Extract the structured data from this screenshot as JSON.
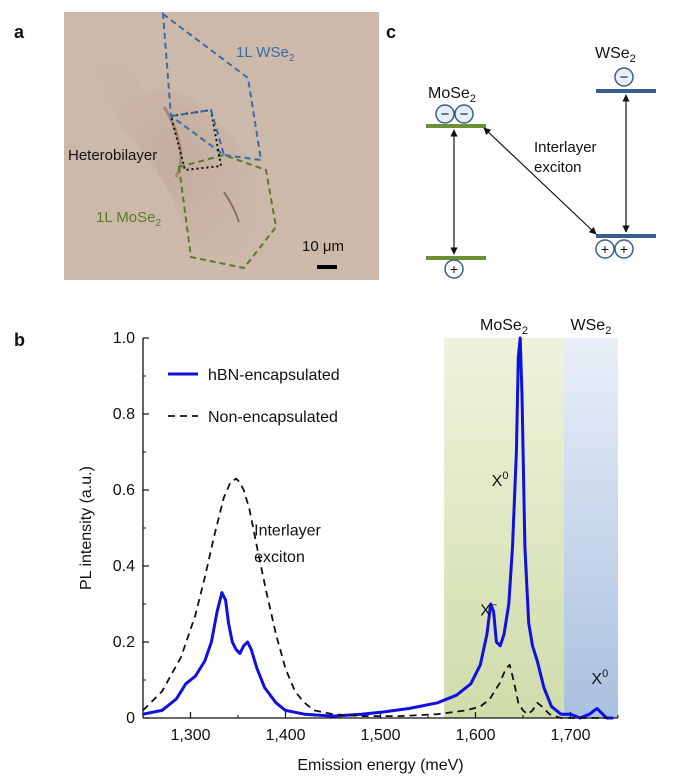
{
  "panels": {
    "a": {
      "label": "a",
      "wse2_label_main": "1L WSe",
      "wse2_label_sub": "2",
      "mose2_label_main": "1L MoSe",
      "mose2_label_sub": "2",
      "heterobilayer": "Heterobilayer",
      "scale_bar": "10 μm"
    },
    "b": {
      "label": "b"
    },
    "c": {
      "label": "c",
      "mose2_main": "MoSe",
      "mose2_sub": "2",
      "wse2_main": "WSe",
      "wse2_sub": "2",
      "interlayer_line1": "Interlayer",
      "interlayer_line2": "exciton",
      "electron": "−",
      "hole": "+"
    }
  },
  "colors": {
    "wse2": "#3a6aa8",
    "mose2": "#5a7a2a",
    "hbn_line": "#1010e0",
    "non_encap_line": "#111111",
    "band_mose2": "#6e8f34",
    "band_wse2": "#3a5e8c"
  },
  "chart_data": {
    "type": "line",
    "xlabel": "Emission energy (meV)",
    "ylabel": "PL intensity (a.u.)",
    "xlim": [
      1250,
      1750
    ],
    "ylim": [
      0,
      1.0
    ],
    "xticks": [
      1300,
      1400,
      1500,
      1600,
      1700
    ],
    "xtick_labels": [
      "1,300",
      "1,400",
      "1,500",
      "1,600",
      "1,700"
    ],
    "yticks": [
      0,
      0.2,
      0.4,
      0.6,
      0.8,
      1.0
    ],
    "ytick_labels": [
      "0",
      "0.2",
      "0.4",
      "0.6",
      "0.8",
      "1.0"
    ],
    "legend_position": "top-left",
    "shaded_regions": [
      {
        "label_main": "MoSe",
        "label_sub": "2",
        "x0": 1567,
        "x1": 1693,
        "color": "#d5e0b3"
      },
      {
        "label_main": "WSe",
        "label_sub": "2",
        "x0": 1693,
        "x1": 1750,
        "color": "#b8cbe4"
      }
    ],
    "annotations": [
      {
        "text_main": "X",
        "text_sup": "0",
        "x": 1617,
        "y": 0.61
      },
      {
        "text_main": "X",
        "text_sup": "−",
        "x": 1605,
        "y": 0.27
      },
      {
        "text_main": "X",
        "text_sup": "0",
        "x": 1722,
        "y": 0.09
      },
      {
        "text_main": "Interlayer",
        "text_sup": "",
        "x": 1367,
        "y": 0.48
      },
      {
        "text_main": "exciton",
        "text_sup": "",
        "x": 1367,
        "y": 0.41
      }
    ],
    "series": [
      {
        "name": "hBN-encapsulated",
        "style": "solid",
        "x": [
          1250,
          1270,
          1285,
          1295,
          1305,
          1315,
          1322,
          1328,
          1333,
          1337,
          1340,
          1344,
          1348,
          1352,
          1356,
          1360,
          1364,
          1370,
          1378,
          1390,
          1400,
          1420,
          1450,
          1480,
          1500,
          1530,
          1560,
          1580,
          1595,
          1605,
          1612,
          1616,
          1619,
          1622,
          1626,
          1630,
          1635,
          1639,
          1643,
          1645,
          1647,
          1649,
          1652,
          1656,
          1660,
          1665,
          1672,
          1680,
          1690,
          1700,
          1710,
          1720,
          1725,
          1728,
          1732,
          1738,
          1745
        ],
        "y": [
          0.01,
          0.02,
          0.05,
          0.09,
          0.11,
          0.15,
          0.2,
          0.28,
          0.33,
          0.31,
          0.25,
          0.2,
          0.18,
          0.17,
          0.19,
          0.2,
          0.18,
          0.13,
          0.08,
          0.04,
          0.02,
          0.01,
          0.005,
          0.01,
          0.015,
          0.025,
          0.04,
          0.06,
          0.09,
          0.14,
          0.22,
          0.3,
          0.28,
          0.2,
          0.19,
          0.22,
          0.3,
          0.45,
          0.7,
          0.95,
          1.0,
          0.85,
          0.45,
          0.25,
          0.19,
          0.15,
          0.08,
          0.03,
          0.01,
          0.01,
          0.0,
          0.01,
          0.02,
          0.025,
          0.015,
          0.0,
          0.0
        ]
      },
      {
        "name": "Non-encapsulated",
        "style": "dashed",
        "x": [
          1250,
          1270,
          1290,
          1305,
          1315,
          1325,
          1335,
          1342,
          1348,
          1352,
          1356,
          1362,
          1370,
          1380,
          1390,
          1400,
          1410,
          1420,
          1430,
          1450,
          1480,
          1520,
          1560,
          1590,
          1605,
          1615,
          1625,
          1632,
          1636,
          1640,
          1645,
          1650,
          1655,
          1660,
          1665,
          1670,
          1678,
          1690,
          1700,
          1720,
          1740
        ],
        "y": [
          0.02,
          0.07,
          0.16,
          0.27,
          0.37,
          0.48,
          0.58,
          0.62,
          0.63,
          0.62,
          0.6,
          0.55,
          0.45,
          0.33,
          0.22,
          0.13,
          0.07,
          0.04,
          0.02,
          0.01,
          0.005,
          0.005,
          0.01,
          0.02,
          0.03,
          0.05,
          0.09,
          0.13,
          0.14,
          0.1,
          0.04,
          0.02,
          0.01,
          0.02,
          0.04,
          0.03,
          0.01,
          0.0,
          0.0,
          0.0,
          0.0
        ]
      }
    ]
  }
}
